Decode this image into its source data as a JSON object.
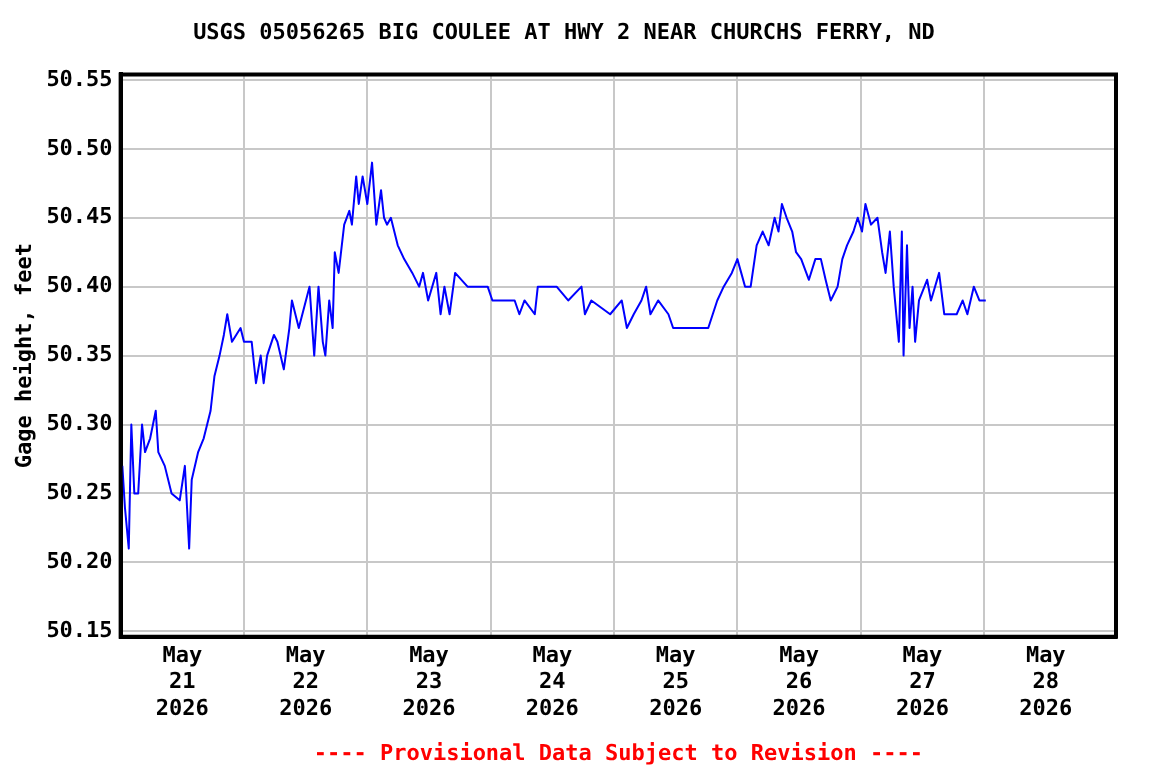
{
  "chart_data": {
    "type": "line",
    "title": "USGS 05056265 BIG COULEE AT HWY 2 NEAR CHURCHS FERRY, ND",
    "ylabel": "Gage height, feet",
    "annotations": [
      "---- Provisional Data Subject to Revision ----"
    ],
    "x": [
      "2026-05-20T12:20",
      "2026-05-20T12:50",
      "2026-05-20T13:35",
      "2026-05-20T14:05",
      "2026-05-20T14:40",
      "2026-05-20T15:25",
      "2026-05-20T16:10",
      "2026-05-20T16:45",
      "2026-05-20T17:45",
      "2026-05-20T18:50",
      "2026-05-20T19:20",
      "2026-05-20T20:35",
      "2026-05-20T21:55",
      "2026-05-20T23:30",
      "2026-05-21T00:30",
      "2026-05-21T01:20",
      "2026-05-21T01:50",
      "2026-05-21T03:05",
      "2026-05-21T04:10",
      "2026-05-21T05:30",
      "2026-05-21T06:15",
      "2026-05-21T07:15",
      "2026-05-21T08:05",
      "2026-05-21T08:45",
      "2026-05-21T09:40",
      "2026-05-21T11:20",
      "2026-05-21T12:00",
      "2026-05-21T13:30",
      "2026-05-21T14:20",
      "2026-05-21T15:15",
      "2026-05-21T15:50",
      "2026-05-21T16:30",
      "2026-05-21T17:50",
      "2026-05-21T18:30",
      "2026-05-21T19:45",
      "2026-05-21T20:50",
      "2026-05-21T21:20",
      "2026-05-21T22:40",
      "2026-05-22T00:45",
      "2026-05-22T01:40",
      "2026-05-22T02:30",
      "2026-05-22T03:20",
      "2026-05-22T03:50",
      "2026-05-22T04:35",
      "2026-05-22T05:15",
      "2026-05-22T05:40",
      "2026-05-22T06:25",
      "2026-05-22T07:30",
      "2026-05-22T08:30",
      "2026-05-22T09:00",
      "2026-05-22T09:50",
      "2026-05-22T10:20",
      "2026-05-22T11:05",
      "2026-05-22T12:00",
      "2026-05-22T12:55",
      "2026-05-22T13:45",
      "2026-05-22T14:40",
      "2026-05-22T15:15",
      "2026-05-22T15:50",
      "2026-05-22T16:35",
      "2026-05-22T17:55",
      "2026-05-22T19:10",
      "2026-05-22T20:45",
      "2026-05-22T22:05",
      "2026-05-22T22:50",
      "2026-05-22T23:50",
      "2026-05-23T01:25",
      "2026-05-23T02:15",
      "2026-05-23T03:00",
      "2026-05-23T04:00",
      "2026-05-23T05:05",
      "2026-05-23T07:30",
      "2026-05-23T11:25",
      "2026-05-23T12:20",
      "2026-05-23T16:40",
      "2026-05-23T17:35",
      "2026-05-23T18:35",
      "2026-05-23T20:35",
      "2026-05-23T21:10",
      "2026-05-24T00:50",
      "2026-05-24T03:05",
      "2026-05-24T05:40",
      "2026-05-24T06:20",
      "2026-05-24T07:35",
      "2026-05-24T11:15",
      "2026-05-24T13:30",
      "2026-05-24T14:30",
      "2026-05-24T15:50",
      "2026-05-24T17:20",
      "2026-05-24T18:15",
      "2026-05-24T19:05",
      "2026-05-24T20:35",
      "2026-05-24T22:35",
      "2026-05-24T23:30",
      "2026-05-25T06:20",
      "2026-05-25T08:05",
      "2026-05-25T09:20",
      "2026-05-25T10:55",
      "2026-05-25T12:00",
      "2026-05-25T12:45",
      "2026-05-25T13:30",
      "2026-05-25T14:35",
      "2026-05-25T15:45",
      "2026-05-25T16:55",
      "2026-05-25T18:05",
      "2026-05-25T19:15",
      "2026-05-25T20:00",
      "2026-05-25T20:40",
      "2026-05-25T21:35",
      "2026-05-25T22:40",
      "2026-05-25T23:25",
      "2026-05-26T00:25",
      "2026-05-26T01:55",
      "2026-05-26T03:10",
      "2026-05-26T04:15",
      "2026-05-26T05:10",
      "2026-05-26T06:10",
      "2026-05-26T07:30",
      "2026-05-26T08:25",
      "2026-05-26T09:20",
      "2026-05-26T10:35",
      "2026-05-26T11:25",
      "2026-05-26T12:15",
      "2026-05-26T12:55",
      "2026-05-26T14:00",
      "2026-05-26T15:15",
      "2026-05-26T16:10",
      "2026-05-26T16:50",
      "2026-05-26T17:40",
      "2026-05-26T18:25",
      "2026-05-26T19:25",
      "2026-05-26T20:00",
      "2026-05-26T20:20",
      "2026-05-26T21:00",
      "2026-05-26T21:30",
      "2026-05-26T22:05",
      "2026-05-26T22:35",
      "2026-05-26T23:20",
      "2026-05-27T00:55",
      "2026-05-27T01:40",
      "2026-05-27T03:15",
      "2026-05-27T04:15",
      "2026-05-27T06:40",
      "2026-05-27T07:50",
      "2026-05-27T08:45",
      "2026-05-27T10:00",
      "2026-05-27T11:05",
      "2026-05-27T12:20"
    ],
    "series": [
      {
        "color": "#0000ff",
        "values": [
          50.27,
          50.24,
          50.21,
          50.3,
          50.25,
          50.25,
          50.3,
          50.28,
          50.29,
          50.31,
          50.28,
          50.27,
          50.25,
          50.245,
          50.27,
          50.21,
          50.26,
          50.28,
          50.29,
          50.31,
          50.335,
          50.35,
          50.365,
          50.38,
          50.36,
          50.37,
          50.36,
          50.36,
          50.33,
          50.35,
          50.33,
          50.35,
          50.365,
          50.36,
          50.34,
          50.37,
          50.39,
          50.37,
          50.4,
          50.35,
          50.4,
          50.36,
          50.35,
          50.39,
          50.37,
          50.425,
          50.41,
          50.445,
          50.455,
          50.445,
          50.48,
          50.46,
          50.48,
          50.46,
          50.49,
          50.445,
          50.47,
          50.45,
          50.445,
          50.45,
          50.43,
          50.42,
          50.41,
          50.4,
          50.41,
          50.39,
          50.41,
          50.38,
          50.4,
          50.38,
          50.41,
          50.4,
          50.4,
          50.39,
          50.39,
          50.38,
          50.39,
          50.38,
          50.4,
          50.4,
          50.39,
          50.4,
          50.38,
          50.39,
          50.38,
          50.39,
          50.37,
          50.38,
          50.39,
          50.4,
          50.38,
          50.39,
          50.38,
          50.37,
          50.37,
          50.39,
          50.4,
          50.41,
          50.42,
          50.41,
          50.4,
          50.4,
          50.43,
          50.44,
          50.43,
          50.45,
          50.44,
          50.46,
          50.45,
          50.44,
          50.425,
          50.42,
          50.405,
          50.42,
          50.42,
          50.405,
          50.39,
          50.4,
          50.42,
          50.43,
          50.44,
          50.45,
          50.44,
          50.46,
          50.445,
          50.45,
          50.425,
          50.41,
          50.44,
          50.4,
          50.36,
          50.44,
          50.35,
          50.43,
          50.37,
          50.4,
          50.36,
          50.39,
          50.405,
          50.39,
          50.41,
          50.38,
          50.38,
          50.39,
          50.38,
          50.4,
          50.39,
          50.39
        ]
      }
    ],
    "xlim": [
      "2026-05-20T12:00",
      "2026-05-28T13:40"
    ],
    "xticks": [
      {
        "value": "2026-05-21",
        "label": "May\n21\n2026"
      },
      {
        "value": "2026-05-22",
        "label": "May\n22\n2026"
      },
      {
        "value": "2026-05-23",
        "label": "May\n23\n2026"
      },
      {
        "value": "2026-05-24",
        "label": "May\n24\n2026"
      },
      {
        "value": "2026-05-25",
        "label": "May\n25\n2026"
      },
      {
        "value": "2026-05-26",
        "label": "May\n26\n2026"
      },
      {
        "value": "2026-05-27",
        "label": "May\n27\n2026"
      },
      {
        "value": "2026-05-28",
        "label": "May\n28\n2026"
      },
      {
        "value": "2026-05-21T12:00",
        "label": null
      },
      {
        "value": "2026-05-22T12:00",
        "label": null
      },
      {
        "value": "2026-05-23T12:00",
        "label": null
      },
      {
        "value": "2026-05-24T12:00",
        "label": null
      },
      {
        "value": "2026-05-25T12:00",
        "label": null
      },
      {
        "value": "2026-05-26T12:00",
        "label": null
      },
      {
        "value": "2026-05-27T12:00",
        "label": null
      }
    ],
    "ylim": [
      50.146,
      50.554
    ],
    "yticks": [
      50.15,
      {
        "value": 50.2,
        "label": "50.20"
      },
      50.25,
      {
        "value": 50.3,
        "label": "50.30"
      },
      50.35,
      {
        "value": 50.4,
        "label": "50.40"
      },
      50.45,
      {
        "value": 50.5,
        "label": "50.50"
      },
      50.55
    ],
    "grid": true,
    "legend": false,
    "marker": "none",
    "line_style": "solid"
  }
}
